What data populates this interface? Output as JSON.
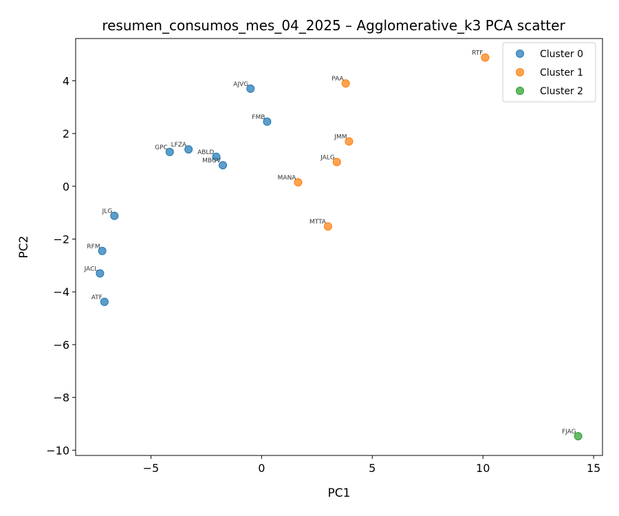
{
  "chart_data": {
    "type": "scatter",
    "title": "resumen_consumos_mes_04_2025 – Agglomerative_k3 PCA scatter",
    "xlabel": "PC1",
    "ylabel": "PC2",
    "xlim": [
      -8.4,
      15.4
    ],
    "ylim": [
      -10.2,
      5.6
    ],
    "xticks": [
      -5,
      0,
      5,
      10,
      15
    ],
    "yticks": [
      -10,
      -8,
      -6,
      -4,
      -2,
      0,
      2,
      4
    ],
    "xtick_labels": [
      "−5",
      "0",
      "5",
      "10",
      "15"
    ],
    "ytick_labels": [
      "−10",
      "−8",
      "−6",
      "−4",
      "−2",
      "0",
      "2",
      "4"
    ],
    "grid": false,
    "legend_position": "top-right",
    "series": [
      {
        "name": "Cluster 0",
        "color": "#1f77b4",
        "points": [
          {
            "label": "AJVG",
            "x": -0.5,
            "y": 3.7
          },
          {
            "label": "FMB",
            "x": 0.25,
            "y": 2.45
          },
          {
            "label": "GPC",
            "x": -4.15,
            "y": 1.3
          },
          {
            "label": "LFZA",
            "x": -3.3,
            "y": 1.4
          },
          {
            "label": "ABLD",
            "x": -2.05,
            "y": 1.12
          },
          {
            "label": "MBGV",
            "x": -1.75,
            "y": 0.8
          },
          {
            "label": "JLG",
            "x": -6.65,
            "y": -1.12
          },
          {
            "label": "RFM",
            "x": -7.2,
            "y": -2.45
          },
          {
            "label": "JACL",
            "x": -7.3,
            "y": -3.3
          },
          {
            "label": "ATF",
            "x": -7.1,
            "y": -4.38
          }
        ]
      },
      {
        "name": "Cluster 1",
        "color": "#ff7f0e",
        "points": [
          {
            "label": "RTF",
            "x": 10.1,
            "y": 4.88
          },
          {
            "label": "PAA",
            "x": 3.8,
            "y": 3.9
          },
          {
            "label": "JMM",
            "x": 3.95,
            "y": 1.7
          },
          {
            "label": "JALG",
            "x": 3.4,
            "y": 0.92
          },
          {
            "label": "MANA",
            "x": 1.65,
            "y": 0.15
          },
          {
            "label": "MTTA",
            "x": 3.0,
            "y": -1.52
          }
        ]
      },
      {
        "name": "Cluster 2",
        "color": "#2ca02c",
        "points": [
          {
            "label": "FJAG",
            "x": 14.3,
            "y": -9.47
          }
        ]
      }
    ]
  }
}
